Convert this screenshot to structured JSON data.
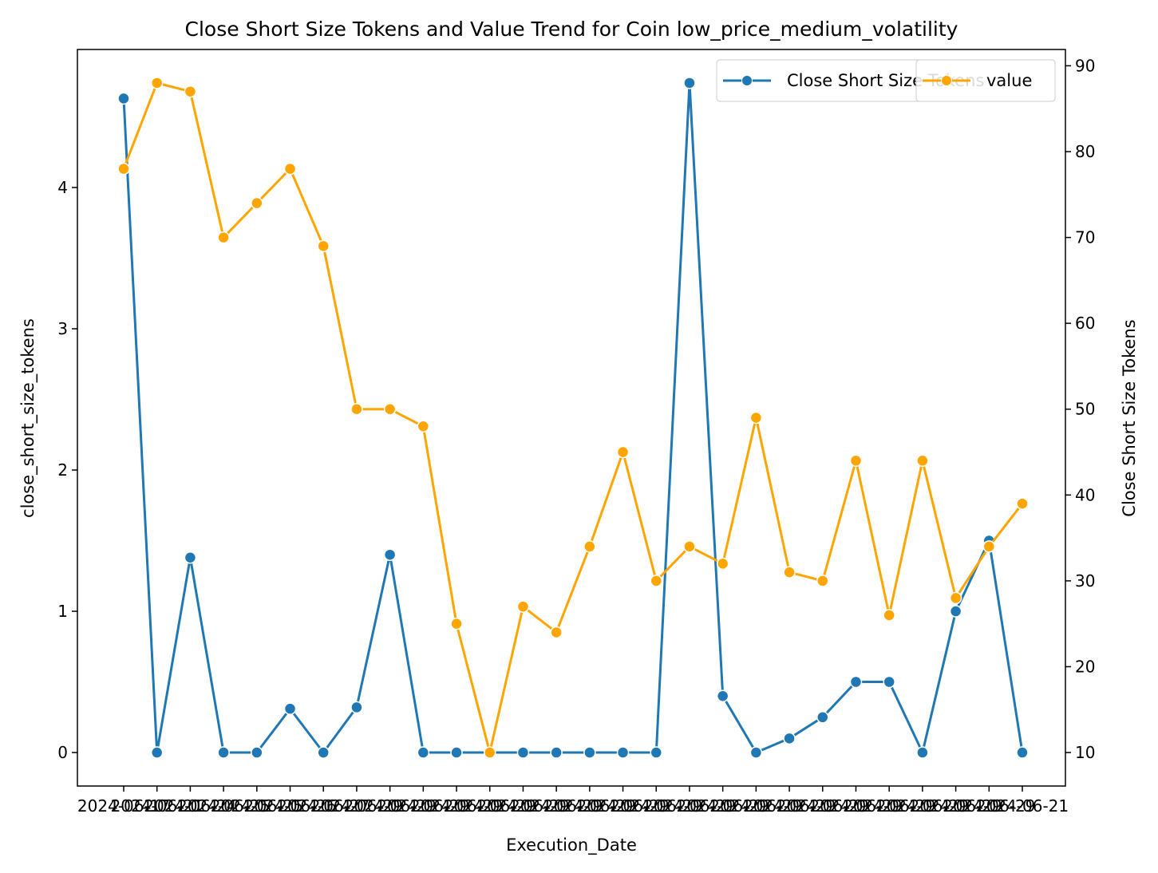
{
  "chart_data": {
    "type": "line",
    "title": "Close Short Size Tokens and Value Trend for Coin low_price_medium_volatility",
    "xlabel": "Execution_Date",
    "ylabel_left": "close_short_size_tokens",
    "ylabel_right": "Close Short Size Tokens",
    "x_tick_labels": [
      "2024-06-17",
      "2024-06-21",
      "2024-06-24",
      "2024-06-25",
      "2024-06-25",
      "2024-06-26",
      "2024-06-27",
      "2024-06-29",
      "2024-06-29",
      "2024-06-29",
      "2024-06-29",
      "2024-06-29",
      "2024-06-29",
      "2024-06-29",
      "2024-06-29",
      "2024-06-29",
      "2024-06-29",
      "2024-06-29",
      "2024-06-29",
      "2024-06-29",
      "2024-06-29",
      "2024-06-29",
      "2024-06-29",
      "2024-06-29",
      "2024-06-29",
      "2024-06-29",
      "2024-06-29",
      "2024-06-21"
    ],
    "series": [
      {
        "name": "Close Short Size Tokens",
        "axis": "left",
        "color": "#1f77b4",
        "values": [
          4.63,
          0,
          1.38,
          0,
          0,
          0.31,
          0,
          0.32,
          1.4,
          0,
          0,
          0,
          0,
          0,
          0,
          0,
          0,
          4.74,
          0.4,
          0,
          0.1,
          0.25,
          0.5,
          0.5,
          0,
          1.0,
          1.5,
          0
        ]
      },
      {
        "name": "value",
        "axis": "right",
        "color": "#ffa500",
        "values": [
          78,
          88,
          87,
          70,
          74,
          78,
          69,
          50,
          50,
          48,
          25,
          10,
          27,
          24,
          34,
          45,
          30,
          34,
          32,
          49,
          31,
          30,
          44,
          26,
          44,
          28,
          34,
          39
        ]
      }
    ],
    "ylim_left": [
      -0.237,
      4.977
    ],
    "yticks_left": [
      0,
      1,
      2,
      3,
      4
    ],
    "ylim_right": [
      6.1,
      91.9
    ],
    "yticks_right": [
      10,
      20,
      30,
      40,
      50,
      60,
      70,
      80,
      90
    ],
    "grid": false,
    "legend_placement": "top-right"
  }
}
